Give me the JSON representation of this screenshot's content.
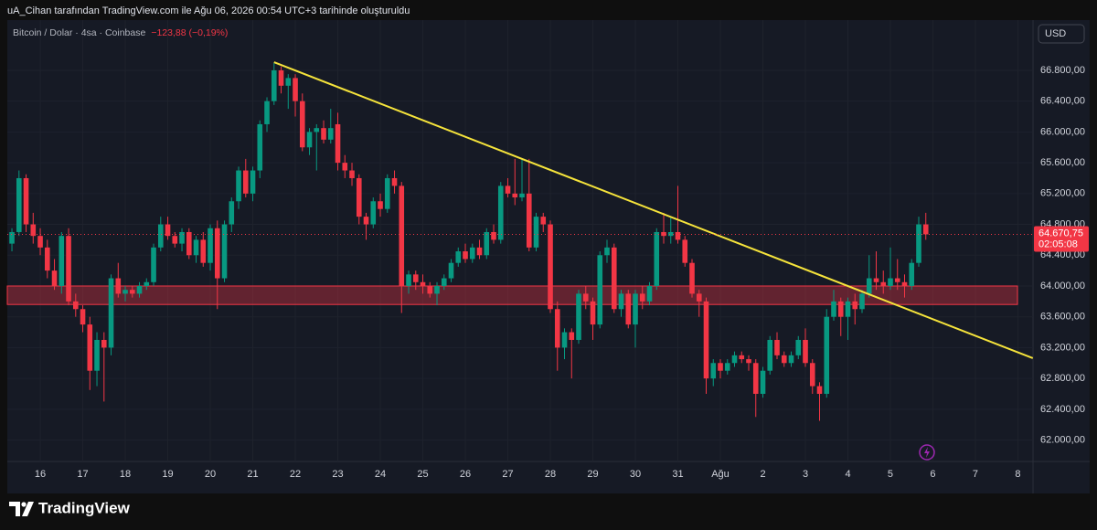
{
  "watermark": "uA_Cihan tarafından TradingView.com ile Ağu 06, 2026 00:54 UTC+3 tarihinde oluşturuldu",
  "brand": "TradingView",
  "chart_data": {
    "type": "candlestick",
    "title": "Bitcoin / Dolar · 4sa · Coinbase",
    "change": "−123,88 (−0,19%)",
    "currency": "USD",
    "up_color": "#089981",
    "down_color": "#f23645",
    "ohlc": [
      [
        64550,
        64750,
        64450,
        64700
      ],
      [
        64700,
        65500,
        64650,
        65400
      ],
      [
        65400,
        65450,
        64700,
        64800
      ],
      [
        64800,
        64950,
        64550,
        64650
      ],
      [
        64650,
        64750,
        64400,
        64500
      ],
      [
        64500,
        64600,
        64100,
        64200
      ],
      [
        64200,
        64350,
        63950,
        64000
      ],
      [
        64000,
        64700,
        63900,
        64650
      ],
      [
        64650,
        64750,
        63750,
        63800
      ],
      [
        63800,
        63900,
        63600,
        63700
      ],
      [
        63700,
        63750,
        63400,
        63500
      ],
      [
        63500,
        63600,
        62650,
        62900
      ],
      [
        62900,
        63400,
        62700,
        63300
      ],
      [
        63300,
        63400,
        62500,
        63200
      ],
      [
        63200,
        64150,
        63100,
        64100
      ],
      [
        64100,
        64300,
        63850,
        63900
      ],
      [
        63900,
        64000,
        63800,
        63950
      ],
      [
        63950,
        64000,
        63850,
        63900
      ],
      [
        63900,
        64050,
        63850,
        64000
      ],
      [
        64000,
        64100,
        63950,
        64050
      ],
      [
        64050,
        64550,
        64000,
        64500
      ],
      [
        64500,
        64900,
        64450,
        64800
      ],
      [
        64800,
        64900,
        64600,
        64650
      ],
      [
        64650,
        64700,
        64500,
        64550
      ],
      [
        64550,
        64750,
        64450,
        64700
      ],
      [
        64700,
        64750,
        64350,
        64400
      ],
      [
        64400,
        64650,
        64300,
        64600
      ],
      [
        64600,
        64700,
        64250,
        64300
      ],
      [
        64300,
        64800,
        64200,
        64750
      ],
      [
        64750,
        64850,
        63700,
        64100
      ],
      [
        64100,
        64850,
        64050,
        64800
      ],
      [
        64800,
        65150,
        64700,
        65100
      ],
      [
        65100,
        65550,
        65000,
        65500
      ],
      [
        65500,
        65650,
        65150,
        65200
      ],
      [
        65200,
        65550,
        65100,
        65500
      ],
      [
        65500,
        66150,
        65400,
        66100
      ],
      [
        66100,
        66450,
        66000,
        66400
      ],
      [
        66400,
        66900,
        66350,
        66800
      ],
      [
        66800,
        66850,
        66500,
        66600
      ],
      [
        66600,
        66750,
        66300,
        66700
      ],
      [
        66700,
        66750,
        66200,
        66400
      ],
      [
        66400,
        66500,
        65750,
        65800
      ],
      [
        65800,
        66050,
        65700,
        66000
      ],
      [
        66000,
        66100,
        65500,
        66050
      ],
      [
        66050,
        66150,
        65850,
        65900
      ],
      [
        65900,
        66300,
        65850,
        66050
      ],
      [
        66100,
        66250,
        65500,
        65600
      ],
      [
        65600,
        65700,
        65400,
        65500
      ],
      [
        65500,
        65600,
        65300,
        65400
      ],
      [
        65400,
        65450,
        64800,
        64900
      ],
      [
        64900,
        64950,
        64600,
        64800
      ],
      [
        64800,
        65150,
        64750,
        65100
      ],
      [
        65100,
        65200,
        64900,
        65000
      ],
      [
        65000,
        65450,
        64950,
        65400
      ],
      [
        65400,
        65500,
        65200,
        65300
      ],
      [
        65300,
        65350,
        63650,
        64000
      ],
      [
        64000,
        64200,
        63900,
        64150
      ],
      [
        64150,
        64200,
        63950,
        64050
      ],
      [
        64050,
        64150,
        63900,
        64000
      ],
      [
        64000,
        64050,
        63850,
        63900
      ],
      [
        63900,
        64050,
        63750,
        64000
      ],
      [
        64000,
        64150,
        63950,
        64100
      ],
      [
        64100,
        64350,
        64050,
        64300
      ],
      [
        64300,
        64500,
        64250,
        64450
      ],
      [
        64450,
        64550,
        64300,
        64350
      ],
      [
        64350,
        64550,
        64300,
        64500
      ],
      [
        64500,
        64600,
        64350,
        64400
      ],
      [
        64400,
        64750,
        64350,
        64700
      ],
      [
        64700,
        64800,
        64550,
        64600
      ],
      [
        64600,
        65350,
        64550,
        65300
      ],
      [
        65300,
        65400,
        65150,
        65200
      ],
      [
        65200,
        65650,
        65050,
        65150
      ],
      [
        65150,
        65650,
        65100,
        65200
      ],
      [
        65200,
        65650,
        64450,
        64500
      ],
      [
        64500,
        64950,
        64450,
        64900
      ],
      [
        64900,
        64950,
        64700,
        64800
      ],
      [
        64800,
        64850,
        63650,
        63700
      ],
      [
        63700,
        63800,
        62900,
        63200
      ],
      [
        63200,
        63450,
        63050,
        63400
      ],
      [
        63400,
        63450,
        62800,
        63300
      ],
      [
        63300,
        63950,
        63250,
        63900
      ],
      [
        63900,
        64000,
        63700,
        63800
      ],
      [
        63800,
        63850,
        63300,
        63500
      ],
      [
        63500,
        64450,
        63450,
        64400
      ],
      [
        64400,
        64600,
        64300,
        64500
      ],
      [
        64500,
        64550,
        63650,
        63700
      ],
      [
        63700,
        63950,
        63600,
        63900
      ],
      [
        63900,
        63950,
        63450,
        63500
      ],
      [
        63500,
        63950,
        63200,
        63900
      ],
      [
        63900,
        64000,
        63700,
        63800
      ],
      [
        63800,
        64050,
        63750,
        64000
      ],
      [
        64000,
        64750,
        63950,
        64700
      ],
      [
        64700,
        64950,
        64550,
        64650
      ],
      [
        64650,
        64900,
        64550,
        64700
      ],
      [
        64700,
        65300,
        64550,
        64600
      ],
      [
        64600,
        64650,
        64250,
        64300
      ],
      [
        64300,
        64350,
        63850,
        63900
      ],
      [
        63900,
        63950,
        63600,
        63800
      ],
      [
        63800,
        63850,
        62600,
        62800
      ],
      [
        62800,
        63050,
        62700,
        63000
      ],
      [
        63000,
        63050,
        62800,
        62900
      ],
      [
        62900,
        63050,
        62850,
        63000
      ],
      [
        63000,
        63150,
        62950,
        63100
      ],
      [
        63100,
        63150,
        63000,
        63050
      ],
      [
        63050,
        63100,
        62900,
        63000
      ],
      [
        63000,
        63050,
        62300,
        62600
      ],
      [
        62600,
        62950,
        62550,
        62900
      ],
      [
        62900,
        63350,
        62850,
        63300
      ],
      [
        63300,
        63400,
        63050,
        63100
      ],
      [
        63100,
        63150,
        62950,
        63000
      ],
      [
        63000,
        63150,
        62950,
        63100
      ],
      [
        63100,
        63350,
        63050,
        63300
      ],
      [
        63300,
        63450,
        62950,
        63000
      ],
      [
        63000,
        63050,
        62600,
        62700
      ],
      [
        62700,
        62750,
        62250,
        62600
      ],
      [
        62600,
        63700,
        62550,
        63600
      ],
      [
        63600,
        63950,
        63550,
        63800
      ],
      [
        63800,
        63850,
        63350,
        63600
      ],
      [
        63600,
        63850,
        63300,
        63800
      ],
      [
        63800,
        63900,
        63500,
        63700
      ],
      [
        63700,
        63950,
        63650,
        63900
      ],
      [
        63900,
        64400,
        63850,
        64100
      ],
      [
        64100,
        64450,
        63950,
        64050
      ],
      [
        64050,
        64200,
        63900,
        64000
      ],
      [
        64000,
        64500,
        63950,
        64100
      ],
      [
        64100,
        64350,
        63950,
        64050
      ],
      [
        64050,
        64150,
        63850,
        64000
      ],
      [
        64000,
        64350,
        63950,
        64300
      ],
      [
        64300,
        64900,
        64250,
        64800
      ],
      [
        64800,
        64950,
        64600,
        64670.75
      ]
    ],
    "xlim": [
      -0.65,
      144.13
    ],
    "xticks": [
      {
        "value": 4,
        "label": "16"
      },
      {
        "value": 10,
        "label": "17"
      },
      {
        "value": 16,
        "label": "18"
      },
      {
        "value": 22,
        "label": "19"
      },
      {
        "value": 28,
        "label": "20"
      },
      {
        "value": 34,
        "label": "21"
      },
      {
        "value": 40,
        "label": "22"
      },
      {
        "value": 46,
        "label": "23"
      },
      {
        "value": 52,
        "label": "24"
      },
      {
        "value": 58,
        "label": "25"
      },
      {
        "value": 64,
        "label": "26"
      },
      {
        "value": 70,
        "label": "27"
      },
      {
        "value": 76,
        "label": "28"
      },
      {
        "value": 82,
        "label": "29"
      },
      {
        "value": 88,
        "label": "30"
      },
      {
        "value": 94,
        "label": "31"
      },
      {
        "value": 100,
        "label": "Ağu"
      },
      {
        "value": 106,
        "label": "2"
      },
      {
        "value": 112,
        "label": "3"
      },
      {
        "value": 118,
        "label": "4"
      },
      {
        "value": 124,
        "label": "5"
      },
      {
        "value": 130,
        "label": "6"
      },
      {
        "value": 136,
        "label": "7"
      },
      {
        "value": 142,
        "label": "8"
      }
    ],
    "ylim": [
      61722,
      67452
    ],
    "yticks": [
      {
        "value": 62000,
        "label": "62.000,00"
      },
      {
        "value": 62400,
        "label": "62.400,00"
      },
      {
        "value": 62800,
        "label": "62.800,00"
      },
      {
        "value": 63200,
        "label": "63.200,00"
      },
      {
        "value": 63600,
        "label": "63.600,00"
      },
      {
        "value": 64000,
        "label": "64.000,00"
      },
      {
        "value": 64400,
        "label": "64.400,00"
      },
      {
        "value": 64800,
        "label": "64.800,00"
      },
      {
        "value": 65200,
        "label": "65.200,00"
      },
      {
        "value": 65600,
        "label": "65.600,00"
      },
      {
        "value": 66000,
        "label": "66.000,00"
      },
      {
        "value": 66400,
        "label": "66.400,00"
      },
      {
        "value": 66800,
        "label": "66.800,00"
      }
    ],
    "grid": true,
    "last_price": {
      "value": 64670.75,
      "label": "64.670,75"
    },
    "countdown": "02:05:08",
    "zone": {
      "low": 63760,
      "high": 64000,
      "color": "#f23645"
    },
    "trendline": {
      "x": [
        37,
        144.1
      ],
      "y": [
        66906,
        63063
      ],
      "color": "#f5e33b"
    }
  }
}
